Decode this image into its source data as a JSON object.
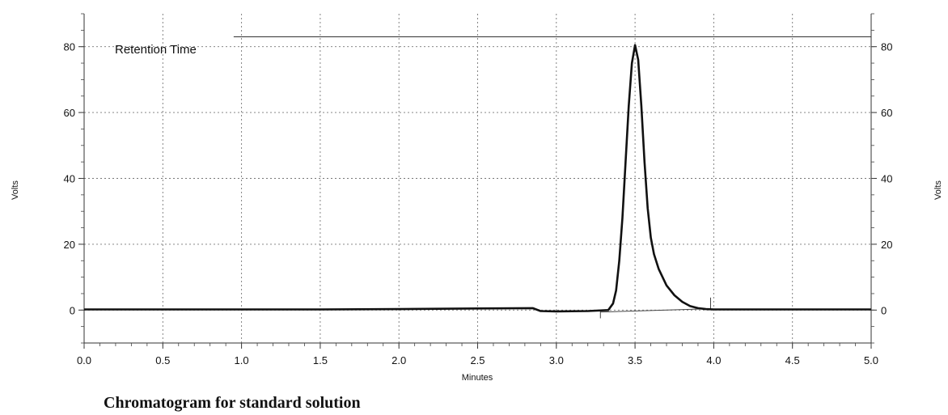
{
  "caption": "Chromatogram for standard solution",
  "chart_data": {
    "type": "line",
    "title": "",
    "xlabel": "Minutes",
    "ylabel_left": "Volts",
    "ylabel_right": "Volts",
    "xlim": [
      0.0,
      5.0
    ],
    "ylim": [
      -10,
      90
    ],
    "x_ticks": [
      "0.0",
      "0.5",
      "1.0",
      "1.5",
      "2.0",
      "2.5",
      "3.0",
      "3.5",
      "4.0",
      "4.5",
      "5.0"
    ],
    "y_ticks": [
      "0",
      "20",
      "40",
      "60",
      "80"
    ],
    "grid": true,
    "legend": {
      "text": "Retention Time",
      "placement": "top-left",
      "line_start_x": 0.95,
      "line_end_x": 5.0,
      "y": 83
    },
    "series": [
      {
        "points": [
          [
            0.0,
            0.2
          ],
          [
            0.5,
            0.2
          ],
          [
            1.0,
            0.2
          ],
          [
            1.5,
            0.2
          ],
          [
            2.0,
            0.3
          ],
          [
            2.5,
            0.5
          ],
          [
            2.85,
            0.6
          ],
          [
            2.9,
            -0.3
          ],
          [
            3.0,
            -0.4
          ],
          [
            3.2,
            -0.3
          ],
          [
            3.33,
            0.0
          ],
          [
            3.36,
            2.0
          ],
          [
            3.38,
            6.0
          ],
          [
            3.4,
            15.0
          ],
          [
            3.42,
            28.0
          ],
          [
            3.44,
            45.0
          ],
          [
            3.46,
            62.0
          ],
          [
            3.48,
            75.0
          ],
          [
            3.5,
            80.5
          ],
          [
            3.52,
            76.0
          ],
          [
            3.54,
            62.0
          ],
          [
            3.56,
            45.0
          ],
          [
            3.58,
            31.0
          ],
          [
            3.6,
            22.0
          ],
          [
            3.62,
            17.0
          ],
          [
            3.65,
            12.5
          ],
          [
            3.7,
            7.5
          ],
          [
            3.75,
            4.5
          ],
          [
            3.8,
            2.5
          ],
          [
            3.85,
            1.2
          ],
          [
            3.9,
            0.6
          ],
          [
            3.95,
            0.3
          ],
          [
            4.0,
            0.2
          ],
          [
            4.5,
            0.2
          ],
          [
            5.0,
            0.2
          ]
        ]
      }
    ],
    "baseline_segment": {
      "from": [
        3.28,
        -0.6
      ],
      "to": [
        3.98,
        0.4
      ]
    },
    "marker_ticks": [
      {
        "x": 3.28,
        "y_from": -2.5,
        "y_to": 0.0
      },
      {
        "x": 3.98,
        "y_from": 0.2,
        "y_to": 3.8
      }
    ]
  }
}
